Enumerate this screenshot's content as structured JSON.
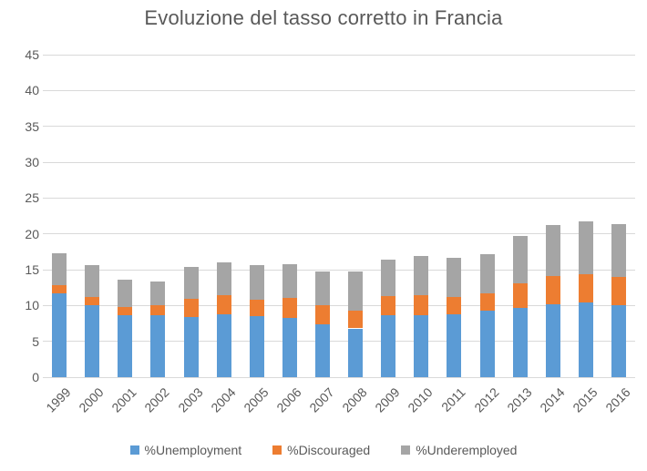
{
  "title": "Evoluzione del tasso corretto in Francia",
  "colors": {
    "unemployment": "#5B9BD5",
    "discouraged": "#ED7D31",
    "underemployed": "#A5A5A5",
    "text": "#595959",
    "gridline": "#D9D9D9",
    "background": "#FFFFFF"
  },
  "chart_data": {
    "type": "bar",
    "stacked": true,
    "title": "Evoluzione del tasso corretto in Francia",
    "categories": [
      "1999",
      "2000",
      "2001",
      "2002",
      "2003",
      "2004",
      "2005",
      "2006",
      "2007",
      "2008",
      "2009",
      "2010",
      "2011",
      "2012",
      "2013",
      "2014",
      "2015",
      "2016"
    ],
    "series": [
      {
        "name": "%Unemployment",
        "color": "#5B9BD5",
        "values": [
          11.7,
          10.0,
          8.7,
          8.6,
          8.4,
          8.8,
          8.5,
          8.2,
          7.4,
          6.8,
          8.6,
          8.7,
          8.8,
          9.3,
          9.7,
          10.2,
          10.4,
          10.1
        ]
      },
      {
        "name": "%Discouraged",
        "color": "#ED7D31",
        "values": [
          1.2,
          1.2,
          1.1,
          1.4,
          2.5,
          2.7,
          2.3,
          2.8,
          2.6,
          2.5,
          2.7,
          2.8,
          2.4,
          2.4,
          3.4,
          3.9,
          4.0,
          3.9
        ]
      },
      {
        "name": "%Underemployed",
        "color": "#A5A5A5",
        "values": [
          4.4,
          4.4,
          3.8,
          3.4,
          4.5,
          4.5,
          4.8,
          4.8,
          4.8,
          5.5,
          5.1,
          5.4,
          5.4,
          5.5,
          6.6,
          7.1,
          7.3,
          7.3
        ]
      }
    ],
    "stack_totals": [
      17.3,
      15.6,
      13.6,
      13.4,
      15.4,
      16.0,
      15.6,
      15.8,
      14.8,
      14.8,
      16.4,
      16.9,
      16.6,
      17.2,
      19.7,
      21.2,
      21.7,
      21.3
    ],
    "xlabel": "",
    "ylabel": "",
    "ylim": [
      0,
      45
    ],
    "ytick_interval": 5,
    "yticks": [
      "0",
      "5",
      "10",
      "15",
      "20",
      "25",
      "30",
      "35",
      "40",
      "45"
    ],
    "grid": true,
    "legend_position": "bottom"
  }
}
